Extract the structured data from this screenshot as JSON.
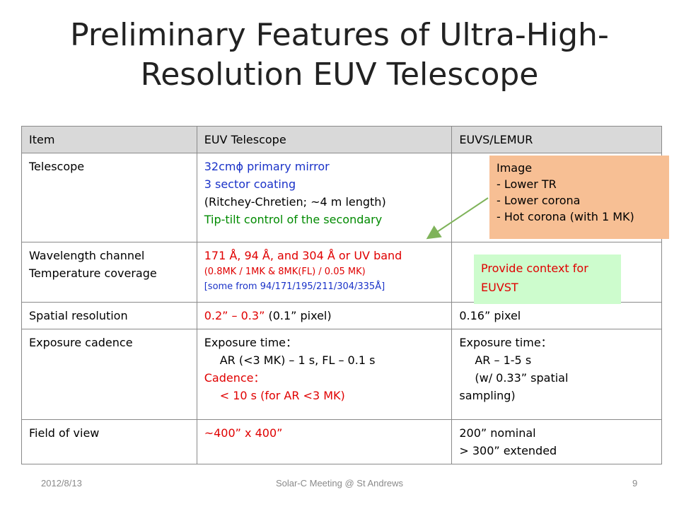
{
  "title": {
    "line1": "Preliminary Features of Ultra-High-",
    "line2": "Resolution EUV Telescope"
  },
  "table": {
    "headers": [
      "Item",
      "EUV Telescope",
      "EUVS/LEMUR"
    ],
    "rows": {
      "telescope": {
        "item": "Telescope",
        "euv": [
          "32cmϕ primary mirror",
          "3 sector coating",
          "(Ritchey-Chretien; ~4 m length)",
          "Tip-tilt control of the secondary"
        ]
      },
      "wavelength": {
        "item1": "Wavelength channel",
        "item2": "Temperature coverage",
        "euv1": "171 Å, 94 Å, and 304 Å or UV band",
        "euv2": "(0.8MK / 1MK & 8MK(FL) / 0.05 MK)",
        "euv3": "[some from 94/171/195/211/304/335Å]"
      },
      "spatial": {
        "item": "Spatial resolution",
        "euv_red": "0.2” – 0.3”",
        "euv_black": " (0.1” pixel)",
        "lemur": "0.16” pixel"
      },
      "exposure": {
        "item": "Exposure cadence",
        "euv": [
          "Exposure time：",
          "AR (<3 MK) – 1 s, FL – 0.1 s",
          "Cadence：",
          "< 10 s (for AR <3 MK)"
        ],
        "lemur": [
          "Exposure time：",
          "AR – 1-5 s",
          "(w/ 0.33” spatial",
          "sampling)"
        ]
      },
      "fov": {
        "item": "Field of view",
        "euv": "~400” x 400”",
        "lemur": [
          "200” nominal",
          "> 300” extended"
        ]
      }
    }
  },
  "callouts": {
    "orange": [
      "Image",
      "- Lower TR",
      "- Lower corona",
      "- Hot corona (with 1 MK)"
    ],
    "green": [
      "Provide context for",
      "EUVST"
    ]
  },
  "footer": {
    "date": "2012/8/13",
    "meeting": "Solar-C Meeting @ St Andrews",
    "page": "9"
  },
  "colors": {
    "blue_text": "#1a32c8",
    "red_text": "#e00000",
    "green_text": "#008a00",
    "header_bg": "#d9d9d9",
    "orange_callout": "#f7bf94",
    "green_callout": "#cdfccd"
  }
}
